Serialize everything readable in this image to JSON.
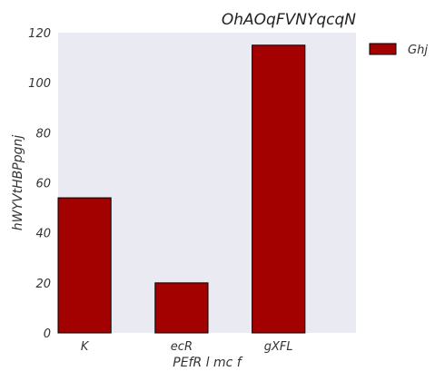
{
  "chart_data": {
    "type": "bar",
    "title": "OhAOqFVNYqcqN",
    "xlabel": "PEfR   l mc f",
    "ylabel": "hWYVtHBPpgnj",
    "categories": [
      "K",
      "ecR",
      "gXFL"
    ],
    "series": [
      {
        "name": "Ghj",
        "values": [
          54,
          20,
          115
        ],
        "color": "#a30000"
      }
    ],
    "ylim": [
      0,
      120
    ],
    "yticks": [
      0,
      20,
      40,
      60,
      80,
      100,
      120
    ],
    "grid": false,
    "legend_position": "outside-top-right",
    "plot_background": "#eaeaf2",
    "bar_edge_color": "#000000"
  }
}
